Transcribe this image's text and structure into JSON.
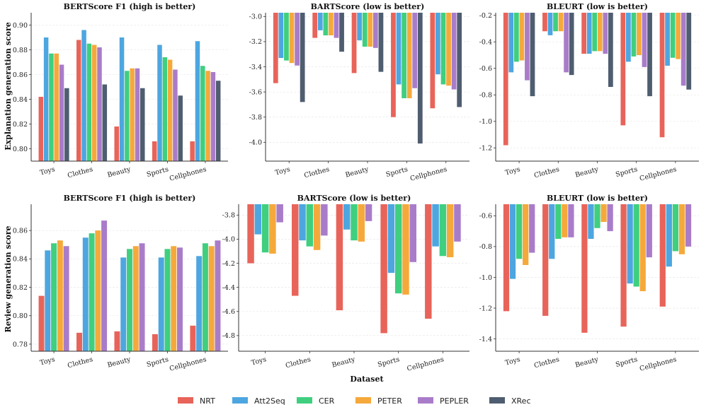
{
  "figure": {
    "row_labels": [
      "Explanation generation score",
      "Review generation score"
    ],
    "xlabel": "Dataset"
  },
  "series": [
    {
      "name": "NRT",
      "color": "#e8645a"
    },
    {
      "name": "Att2Seq",
      "color": "#4da6e0"
    },
    {
      "name": "CER",
      "color": "#3fcf7f"
    },
    {
      "name": "PETER",
      "color": "#f5a93b"
    },
    {
      "name": "PEPLER",
      "color": "#a97cc9"
    },
    {
      "name": "XRec",
      "color": "#4f5d70"
    }
  ],
  "chart_data": [
    {
      "type": "bar",
      "title": "BERTScore F1 (high is better)",
      "categories": [
        "Toys",
        "Clothes",
        "Beauty",
        "Sports",
        "Cellphones"
      ],
      "ylim": [
        0.79,
        0.91
      ],
      "yticks": [
        0.8,
        0.82,
        0.84,
        0.86,
        0.88,
        0.9
      ],
      "tick_decimals": 2,
      "series": [
        {
          "name": "NRT",
          "values": [
            0.842,
            0.888,
            0.818,
            0.806,
            0.806
          ]
        },
        {
          "name": "Att2Seq",
          "values": [
            0.89,
            0.896,
            0.89,
            0.884,
            0.887
          ]
        },
        {
          "name": "CER",
          "values": [
            0.877,
            0.885,
            0.863,
            0.874,
            0.867
          ]
        },
        {
          "name": "PETER",
          "values": [
            0.877,
            0.884,
            0.865,
            0.872,
            0.863
          ]
        },
        {
          "name": "PEPLER",
          "values": [
            0.868,
            0.882,
            0.865,
            0.864,
            0.862
          ]
        },
        {
          "name": "XRec",
          "values": [
            0.849,
            0.852,
            0.849,
            0.843,
            0.855
          ]
        }
      ]
    },
    {
      "type": "bar",
      "title": "BARTScore (low is better)",
      "categories": [
        "Toys",
        "Clothes",
        "Beauty",
        "Sports",
        "Cellphones"
      ],
      "ylim": [
        -4.15,
        -2.97
      ],
      "yticks": [
        -3.0,
        -3.2,
        -3.4,
        -3.6,
        -3.8,
        -4.0
      ],
      "tick_decimals": 1,
      "series": [
        {
          "name": "NRT",
          "values": [
            -3.53,
            -3.17,
            -3.45,
            -3.8,
            -3.73
          ]
        },
        {
          "name": "Att2Seq",
          "values": [
            -3.33,
            -3.11,
            -3.19,
            -3.54,
            -3.46
          ]
        },
        {
          "name": "CER",
          "values": [
            -3.35,
            -3.15,
            -3.24,
            -3.65,
            -3.54
          ]
        },
        {
          "name": "PETER",
          "values": [
            -3.37,
            -3.15,
            -3.24,
            -3.65,
            -3.55
          ]
        },
        {
          "name": "PEPLER",
          "values": [
            -3.39,
            -3.17,
            -3.25,
            -3.57,
            -3.58
          ]
        },
        {
          "name": "XRec",
          "values": [
            -3.68,
            -3.28,
            -3.44,
            -4.01,
            -3.72
          ]
        }
      ]
    },
    {
      "type": "bar",
      "title": "BLEURT (low is better)",
      "categories": [
        "Toys",
        "Clothes",
        "Beauty",
        "Sports",
        "Cellphones"
      ],
      "ylim": [
        -1.3,
        -0.18
      ],
      "yticks": [
        -0.2,
        -0.4,
        -0.6,
        -0.8,
        -1.0,
        -1.2
      ],
      "tick_decimals": 1,
      "series": [
        {
          "name": "NRT",
          "values": [
            -1.18,
            -0.32,
            -0.49,
            -1.03,
            -1.12
          ]
        },
        {
          "name": "Att2Seq",
          "values": [
            -0.63,
            -0.35,
            -0.49,
            -0.55,
            -0.58
          ]
        },
        {
          "name": "CER",
          "values": [
            -0.55,
            -0.32,
            -0.47,
            -0.51,
            -0.52
          ]
        },
        {
          "name": "PETER",
          "values": [
            -0.54,
            -0.32,
            -0.47,
            -0.5,
            -0.53
          ]
        },
        {
          "name": "PEPLER",
          "values": [
            -0.69,
            -0.63,
            -0.49,
            -0.59,
            -0.73
          ]
        },
        {
          "name": "XRec",
          "values": [
            -0.81,
            -0.65,
            -0.74,
            -0.81,
            -0.76
          ]
        }
      ]
    },
    {
      "type": "bar",
      "title": "BERTScore F1 (high is better)",
      "categories": [
        "Toys",
        "Clothes",
        "Beauty",
        "Sports",
        "Cellphones"
      ],
      "ylim": [
        0.775,
        0.8785
      ],
      "yticks": [
        0.78,
        0.8,
        0.82,
        0.84,
        0.86
      ],
      "tick_decimals": 2,
      "series": [
        {
          "name": "NRT",
          "values": [
            0.814,
            0.788,
            0.789,
            0.787,
            0.793
          ]
        },
        {
          "name": "Att2Seq",
          "values": [
            0.846,
            0.855,
            0.841,
            0.841,
            0.842
          ]
        },
        {
          "name": "CER",
          "values": [
            0.851,
            0.858,
            0.847,
            0.847,
            0.851
          ]
        },
        {
          "name": "PETER",
          "values": [
            0.853,
            0.86,
            0.849,
            0.849,
            0.849
          ]
        },
        {
          "name": "PEPLER",
          "values": [
            0.849,
            0.867,
            0.851,
            0.848,
            0.853
          ]
        }
      ]
    },
    {
      "type": "bar",
      "title": "BARTScore (low is better)",
      "categories": [
        "Toys",
        "Clothes",
        "Beauty",
        "Sports",
        "Cellphones"
      ],
      "ylim": [
        -4.93,
        -3.71
      ],
      "yticks": [
        -3.8,
        -4.0,
        -4.2,
        -4.4,
        -4.6,
        -4.8
      ],
      "tick_decimals": 1,
      "series": [
        {
          "name": "NRT",
          "values": [
            -4.2,
            -4.47,
            -4.59,
            -4.78,
            -4.66
          ]
        },
        {
          "name": "Att2Seq",
          "values": [
            -3.96,
            -4.01,
            -3.92,
            -4.28,
            -4.06
          ]
        },
        {
          "name": "CER",
          "values": [
            -4.11,
            -4.06,
            -4.01,
            -4.45,
            -4.14
          ]
        },
        {
          "name": "PETER",
          "values": [
            -4.12,
            -4.09,
            -4.02,
            -4.46,
            -4.15
          ]
        },
        {
          "name": "PEPLER",
          "values": [
            -3.86,
            -3.97,
            -3.85,
            -4.19,
            -4.02
          ]
        }
      ]
    },
    {
      "type": "bar",
      "title": "BLEURT (low is better)",
      "categories": [
        "Toys",
        "Clothes",
        "Beauty",
        "Sports",
        "Cellphones"
      ],
      "ylim": [
        -1.48,
        -0.525
      ],
      "yticks": [
        -0.6,
        -0.8,
        -1.0,
        -1.2,
        -1.4
      ],
      "tick_decimals": 1,
      "series": [
        {
          "name": "NRT",
          "values": [
            -1.22,
            -1.25,
            -1.36,
            -1.32,
            -1.19
          ]
        },
        {
          "name": "Att2Seq",
          "values": [
            -1.01,
            -0.88,
            -0.75,
            -1.04,
            -0.93
          ]
        },
        {
          "name": "CER",
          "values": [
            -0.88,
            -0.75,
            -0.68,
            -1.06,
            -0.83
          ]
        },
        {
          "name": "PETER",
          "values": [
            -0.92,
            -0.74,
            -0.64,
            -1.09,
            -0.85
          ]
        },
        {
          "name": "PEPLER",
          "values": [
            -0.84,
            -0.74,
            -0.7,
            -0.87,
            -0.8
          ]
        }
      ]
    }
  ]
}
